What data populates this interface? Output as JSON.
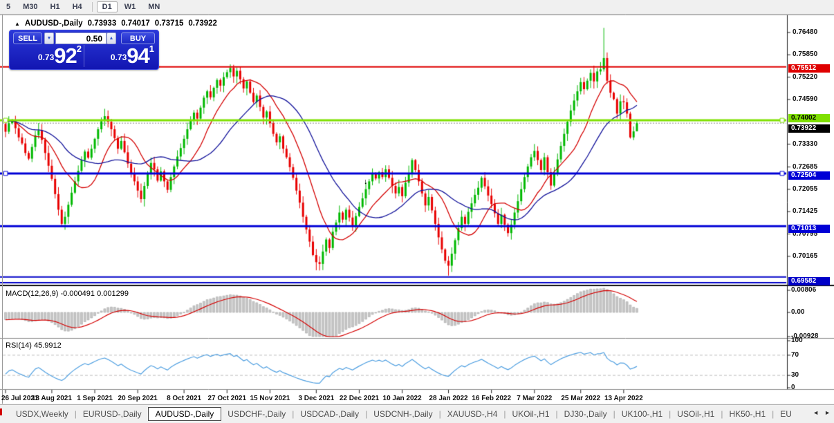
{
  "toolbar": {
    "periods": [
      "5",
      "M30",
      "H1",
      "H4",
      "D1",
      "W1",
      "MN"
    ],
    "active": "D1"
  },
  "chart_header": {
    "collapse_icon": "▲",
    "symbol": "AUDUSD-,Daily",
    "open": "0.73933",
    "high": "0.74017",
    "low": "0.73715",
    "close": "0.73922"
  },
  "quote_panel": {
    "sell_label": "SELL",
    "buy_label": "BUY",
    "volume": "0.50",
    "down_icon": "▼",
    "up_icon": "▲",
    "bid_prefix": "0.73",
    "bid_big": "92",
    "bid_sup": "2",
    "ask_prefix": "0.73",
    "ask_big": "94",
    "ask_sup": "1"
  },
  "price_axis": {
    "labels": [
      "0.76480",
      "0.75850",
      "0.75220",
      "0.74590",
      "0.73330",
      "0.72685",
      "0.72055",
      "0.71425",
      "0.70795",
      "0.70165"
    ],
    "tags": [
      {
        "text": "0.75512",
        "bg": "#DF0000",
        "fg": "#FFFFFF",
        "dy": 2
      },
      {
        "text": "0.74002",
        "bg": "#7FE000",
        "fg": "#000000",
        "dy": -3
      },
      {
        "text": "0.73922",
        "bg": "#000000",
        "fg": "#FFFFFF",
        "dy": 8
      },
      {
        "text": "0.72504",
        "bg": "#0000D6",
        "fg": "#FFFFFF",
        "dy": 3
      },
      {
        "text": "0.71013",
        "bg": "#0000D6",
        "fg": "#FFFFFF",
        "dy": 4
      },
      {
        "text": "0.69582",
        "bg": "#0000C8",
        "fg": "#FFFFFF",
        "dy": 6
      }
    ]
  },
  "macd_panel": {
    "label": "MACD(12,26,9) -0.000491 0.001299",
    "axis_labels": [
      "0.00806",
      "0.00",
      "-0.00928"
    ]
  },
  "rsi_panel": {
    "label": "RSI(14) 45.9912",
    "axis_labels": [
      "100",
      "70",
      "30",
      "0"
    ]
  },
  "date_axis": {
    "labels": [
      "26 Jul 2021",
      "13 Aug 2021",
      "1 Sep 2021",
      "20 Sep 2021",
      "8 Oct 2021",
      "27 Oct 2021",
      "15 Nov 2021",
      "3 Dec 2021",
      "22 Dec 2021",
      "10 Jan 2022",
      "28 Jan 2022",
      "16 Feb 2022",
      "7 Mar 2022",
      "25 Mar 2022",
      "13 Apr 2022"
    ],
    "day_indices": [
      0,
      14,
      27,
      40,
      54,
      67,
      80,
      94,
      107,
      120,
      134,
      147,
      160,
      174,
      187
    ]
  },
  "tab_bar": {
    "tabs": [
      "USDX,Weekly",
      "EURUSD-,Daily",
      "AUDUSD-,Daily",
      "USDCHF-,Daily",
      "USDCAD-,Daily",
      "USDCNH-,Daily",
      "XAUUSD-,H4",
      "UKOil-,H1",
      "DJ30-,Daily",
      "UK100-,H1",
      "USOil-,H1",
      "HK50-,H1",
      "EU"
    ],
    "active": "AUDUSD-,Daily",
    "scroll_left": "◄",
    "scroll_right": "►"
  },
  "chart_data": {
    "type": "candlestick",
    "symbol": "AUDUSD",
    "timeframe": "Daily",
    "ohlc_current": {
      "open": 0.73933,
      "high": 0.74017,
      "low": 0.73715,
      "close": 0.73922
    },
    "bid": 0.73922,
    "ask": 0.73941,
    "spread_volume": 0.5,
    "ylim": [
      0.6938,
      0.7699
    ],
    "first_open": 0.739,
    "closes": [
      0.7368,
      0.7392,
      0.74,
      0.7378,
      0.7352,
      0.7335,
      0.7308,
      0.7292,
      0.7325,
      0.7358,
      0.7372,
      0.7345,
      0.7308,
      0.7272,
      0.7235,
      0.7192,
      0.7148,
      0.7108,
      0.7128,
      0.7162,
      0.7196,
      0.7228,
      0.7258,
      0.7288,
      0.7312,
      0.7295,
      0.732,
      0.7348,
      0.7375,
      0.7398,
      0.7412,
      0.7396,
      0.7375,
      0.735,
      0.732,
      0.7342,
      0.731,
      0.7278,
      0.725,
      0.7228,
      0.7202,
      0.7178,
      0.7215,
      0.725,
      0.728,
      0.7262,
      0.723,
      0.7256,
      0.7228,
      0.7204,
      0.724,
      0.727,
      0.7298,
      0.7322,
      0.7348,
      0.7375,
      0.74,
      0.7422,
      0.7405,
      0.7436,
      0.7464,
      0.7482,
      0.7465,
      0.7492,
      0.7514,
      0.7498,
      0.7522,
      0.7536,
      0.7548,
      0.7524,
      0.754,
      0.7516,
      0.749,
      0.751,
      0.7478,
      0.7452,
      0.747,
      0.7438,
      0.7408,
      0.7425,
      0.7392,
      0.7362,
      0.7338,
      0.7355,
      0.732,
      0.7296,
      0.7268,
      0.7238,
      0.7202,
      0.7168,
      0.7128,
      0.7092,
      0.7058,
      0.702,
      0.7,
      0.6995,
      0.703,
      0.7064,
      0.704,
      0.7086,
      0.7112,
      0.714,
      0.712,
      0.7148,
      0.7126,
      0.7104,
      0.713,
      0.7156,
      0.718,
      0.7206,
      0.7228,
      0.725,
      0.7236,
      0.7254,
      0.724,
      0.7262,
      0.7238,
      0.7215,
      0.7194,
      0.7212,
      0.7186,
      0.7224,
      0.7252,
      0.7288,
      0.726,
      0.7228,
      0.7194,
      0.716,
      0.7184,
      0.7146,
      0.7108,
      0.707,
      0.7036,
      0.7004,
      0.699,
      0.7024,
      0.7062,
      0.7096,
      0.7128,
      0.7108,
      0.7142,
      0.7166,
      0.719,
      0.721,
      0.7238,
      0.7214,
      0.7188,
      0.7164,
      0.7138,
      0.7108,
      0.7134,
      0.7106,
      0.7082,
      0.7106,
      0.714,
      0.7172,
      0.7206,
      0.724,
      0.727,
      0.7296,
      0.7314,
      0.7288,
      0.726,
      0.7296,
      0.7254,
      0.7216,
      0.7252,
      0.729,
      0.7328,
      0.7362,
      0.7396,
      0.7428,
      0.7456,
      0.7482,
      0.7508,
      0.7488,
      0.7512,
      0.7534,
      0.751,
      0.7538,
      0.7544,
      0.7576,
      0.7512,
      0.7478,
      0.746,
      0.7419,
      0.7454,
      0.7451,
      0.7419,
      0.7352,
      0.7369,
      0.73922
    ],
    "wick_overrides": {
      "17": {
        "low": 0.7102
      },
      "94": {
        "low": 0.6977
      },
      "134": {
        "low": 0.6962
      },
      "181": {
        "high": 0.7661
      },
      "191": {
        "high": 0.74017,
        "low": 0.73715
      }
    },
    "levels": [
      {
        "price": 0.75512,
        "color": "#DF0000",
        "width": 2,
        "handles": false
      },
      {
        "price": 0.74002,
        "color": "#7FE000",
        "width": 3,
        "handles": true
      },
      {
        "price": 0.72504,
        "color": "#0000D6",
        "width": 3,
        "handles": true
      },
      {
        "price": 0.71013,
        "color": "#0000D6",
        "width": 3,
        "handles": false
      },
      {
        "price": 0.69582,
        "color": "#0000C8",
        "width": 2,
        "handles": false
      },
      {
        "price": 0.6942,
        "color": "#0000C8",
        "width": 2,
        "handles": false
      }
    ],
    "current_price_line": {
      "price": 0.73922,
      "color": "#8A8A8A"
    },
    "moving_averages": [
      {
        "period": 12,
        "type": "sma",
        "color": "#D40000"
      },
      {
        "period": 26,
        "type": "sma",
        "color": "#12129A"
      }
    ],
    "macd": {
      "fast": 12,
      "slow": 26,
      "signal": 9,
      "value": -0.000491,
      "signal_value": 0.001299,
      "hist_color": "#C6C6C6",
      "hist_border": "#A8A8A8",
      "signal_color": "#D40000",
      "ylim": [
        -0.00928,
        0.00806
      ]
    },
    "rsi": {
      "period": 14,
      "value": 45.9912,
      "color": "#4D9EE0",
      "levels": [
        70,
        30
      ],
      "ylim": [
        0,
        100
      ]
    },
    "annotations": [
      {
        "day": 109,
        "price": 0.7228,
        "glyph": "↓"
      }
    ],
    "candle_up_color": "#00B800",
    "candle_down_color": "#E80000"
  }
}
